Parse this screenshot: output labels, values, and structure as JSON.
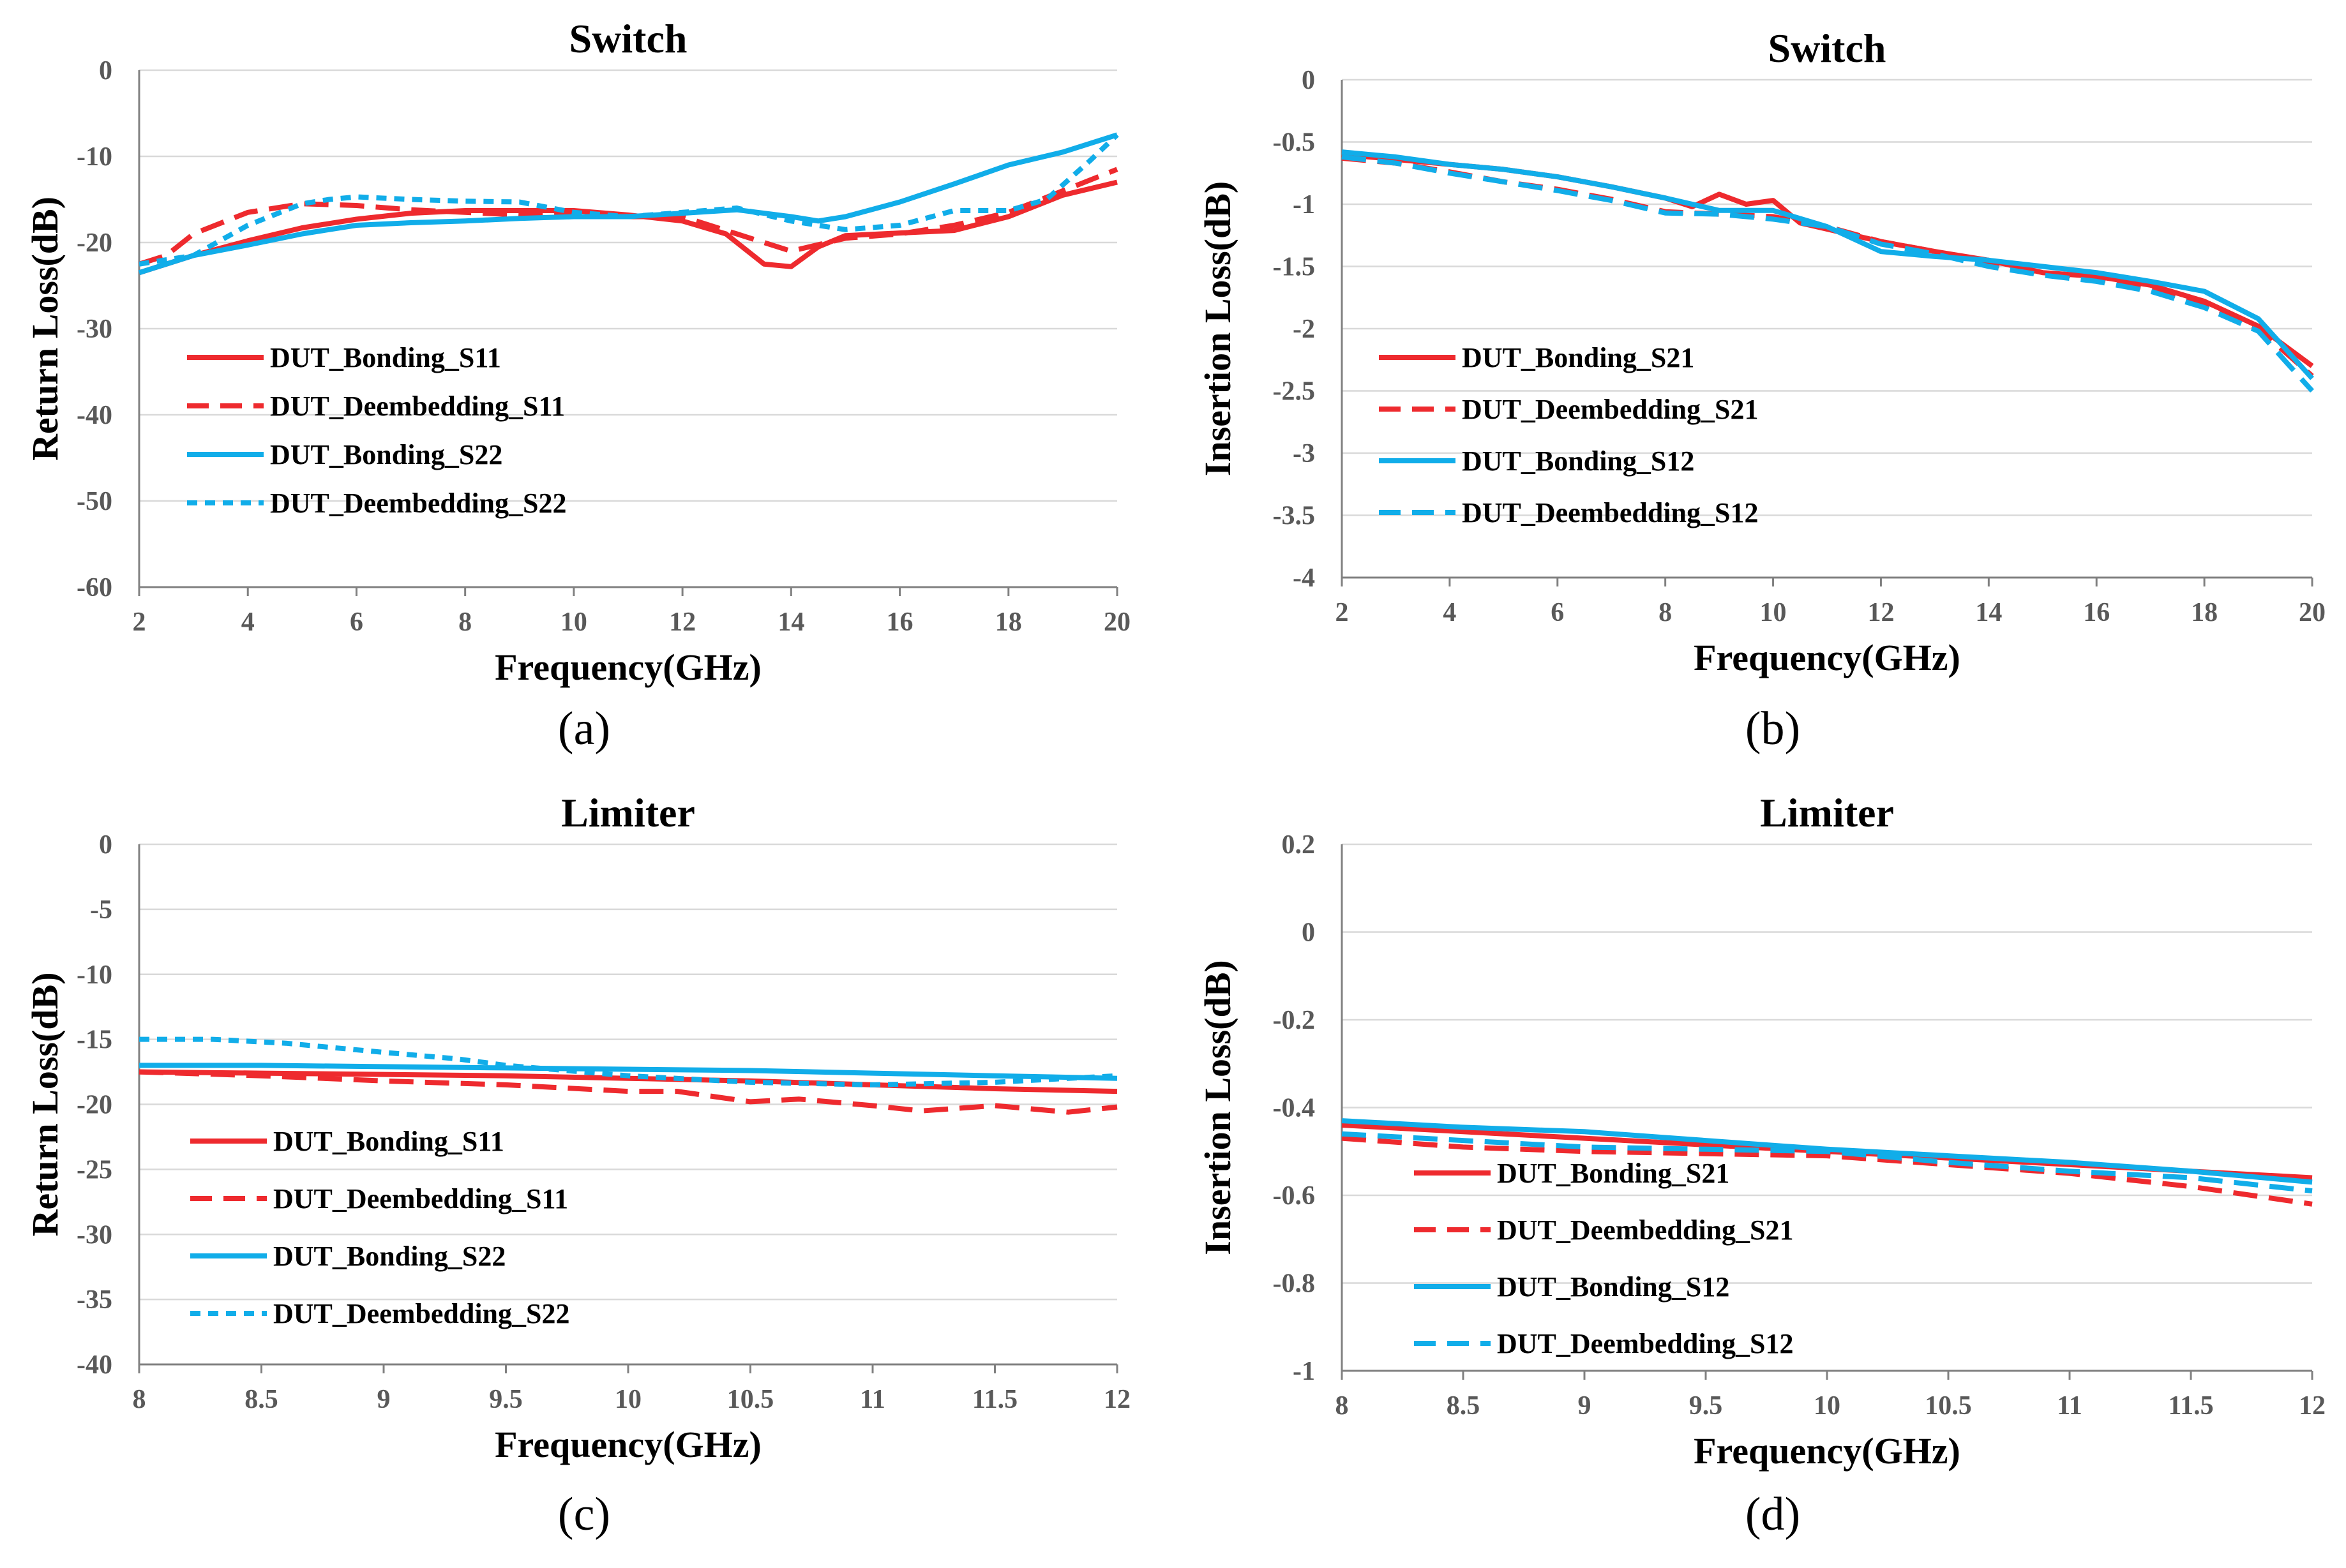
{
  "colors": {
    "red": "#EE2A2E",
    "blue": "#11ADE9",
    "grid": "#D9D9D9",
    "axis": "#808080"
  },
  "panels": [
    {
      "id": "a",
      "caption": "(a)",
      "chart_data": {
        "type": "line",
        "title": "Switch",
        "xlabel": "Frequency(GHz)",
        "ylabel": "Return Loss(dB)",
        "xlim": [
          2,
          20
        ],
        "ylim": [
          -60,
          0
        ],
        "xticks": [
          2,
          4,
          6,
          8,
          10,
          12,
          14,
          16,
          18,
          20
        ],
        "yticks": [
          0,
          -10,
          -20,
          -30,
          -40,
          -50,
          -60
        ],
        "legend_position": "lower-left",
        "series": [
          {
            "name": "DUT_Bonding_S11",
            "color": "red",
            "style": "solid",
            "x": [
              2,
              3,
              4,
              5,
              6,
              7,
              8,
              9,
              10,
              11,
              12,
              12.8,
              13.5,
              14,
              14.5,
              15,
              16,
              17,
              18,
              19,
              20
            ],
            "y": [
              -23.5,
              -21.5,
              -19.8,
              -18.3,
              -17.3,
              -16.6,
              -16.3,
              -16.3,
              -16.3,
              -16.8,
              -17.5,
              -19,
              -22.5,
              -22.8,
              -20.5,
              -19.2,
              -18.9,
              -18.6,
              -17,
              -14.5,
              -13
            ]
          },
          {
            "name": "DUT_Deembedding_S11",
            "color": "red",
            "style": "dash",
            "x": [
              2,
              2.5,
              3,
              4,
              5,
              6,
              7,
              8,
              9,
              10,
              11,
              12,
              13,
              14,
              15,
              16,
              17,
              18,
              19,
              20
            ],
            "y": [
              -22.5,
              -21.5,
              -19,
              -16.5,
              -15.5,
              -15.7,
              -16.2,
              -16.5,
              -16.8,
              -16.8,
              -17,
              -17,
              -19,
              -21,
              -19.5,
              -19,
              -18,
              -16.5,
              -14,
              -11.5
            ]
          },
          {
            "name": "DUT_Bonding_S22",
            "color": "blue",
            "style": "solid",
            "x": [
              2,
              3,
              4,
              5,
              6,
              7,
              8,
              9,
              10,
              11,
              12,
              13,
              14,
              14.5,
              15,
              16,
              17,
              18,
              19,
              20
            ],
            "y": [
              -23.5,
              -21.5,
              -20.3,
              -19,
              -18,
              -17.7,
              -17.5,
              -17.2,
              -17,
              -17,
              -16.6,
              -16.2,
              -17,
              -17.5,
              -17,
              -15.3,
              -13.2,
              -11,
              -9.5,
              -7.5
            ]
          },
          {
            "name": "DUT_Deembedding_S22",
            "color": "blue",
            "style": "dot",
            "x": [
              2,
              3,
              4,
              5,
              5.5,
              6,
              7,
              8,
              9,
              10,
              11,
              12,
              13,
              14,
              15,
              16,
              17,
              18,
              18.7,
              19.5,
              20
            ],
            "y": [
              -22.5,
              -21.5,
              -18,
              -15.5,
              -15,
              -14.7,
              -15,
              -15.2,
              -15.3,
              -16.5,
              -17,
              -16.5,
              -16,
              -17.5,
              -18.5,
              -18,
              -16.3,
              -16.3,
              -15,
              -10.5,
              -7.5
            ]
          }
        ],
        "legend": [
          "DUT_Bonding_S11",
          "DUT_Deembedding_S11",
          "DUT_Bonding_S22",
          "DUT_Deembedding_S22"
        ]
      }
    },
    {
      "id": "b",
      "caption": "(b)",
      "chart_data": {
        "type": "line",
        "title": "Switch",
        "xlabel": "Frequency(GHz)",
        "ylabel": "Insertion Loss(dB)",
        "xlim": [
          2,
          20
        ],
        "ylim": [
          -4,
          0
        ],
        "xticks": [
          2,
          4,
          6,
          8,
          10,
          12,
          14,
          16,
          18,
          20
        ],
        "yticks": [
          0,
          -0.5,
          -1,
          -1.5,
          -2,
          -2.5,
          -3,
          -3.5,
          -4
        ],
        "ytick_labels": [
          "0",
          "-0.5",
          "-1",
          "-1.5",
          "-2",
          "-2.5",
          "-3",
          "-3.5",
          "-4"
        ],
        "legend_position": "lower-left",
        "series": [
          {
            "name": "DUT_Bonding_S21",
            "color": "red",
            "style": "solid",
            "x": [
              2,
              3,
              4,
              5,
              6,
              7,
              8,
              8.5,
              9,
              9.5,
              10,
              10.5,
              11,
              12,
              13,
              14,
              15,
              16,
              17,
              18,
              19,
              20
            ],
            "y": [
              -0.6,
              -0.64,
              -0.68,
              -0.72,
              -0.78,
              -0.86,
              -0.95,
              -1.02,
              -0.92,
              -1.0,
              -0.97,
              -1.15,
              -1.2,
              -1.3,
              -1.38,
              -1.45,
              -1.55,
              -1.58,
              -1.65,
              -1.78,
              -1.98,
              -2.3
            ]
          },
          {
            "name": "DUT_Deembedding_S21",
            "color": "red",
            "style": "dash",
            "x": [
              2,
              3,
              4,
              5,
              6,
              7,
              8,
              9,
              10,
              11,
              12,
              13,
              14,
              15,
              16,
              17,
              18,
              19,
              20
            ],
            "y": [
              -0.63,
              -0.67,
              -0.74,
              -0.82,
              -0.88,
              -0.96,
              -1.06,
              -1.08,
              -1.1,
              -1.18,
              -1.3,
              -1.38,
              -1.48,
              -1.55,
              -1.6,
              -1.68,
              -1.8,
              -2.0,
              -2.38
            ]
          },
          {
            "name": "DUT_Bonding_S12",
            "color": "blue",
            "style": "solid",
            "x": [
              2,
              3,
              4,
              5,
              6,
              7,
              8,
              9,
              10,
              11,
              12,
              13,
              14,
              15,
              16,
              17,
              18,
              19,
              20
            ],
            "y": [
              -0.58,
              -0.62,
              -0.68,
              -0.72,
              -0.78,
              -0.86,
              -0.95,
              -1.05,
              -1.05,
              -1.18,
              -1.38,
              -1.42,
              -1.45,
              -1.5,
              -1.55,
              -1.62,
              -1.7,
              -1.92,
              -2.4
            ]
          },
          {
            "name": "DUT_Deembedding_S12",
            "color": "blue",
            "style": "dash",
            "x": [
              2,
              3,
              4,
              5,
              6,
              7,
              8,
              9,
              10,
              11,
              12,
              13,
              14,
              15,
              16,
              17,
              18,
              19,
              20
            ],
            "y": [
              -0.62,
              -0.67,
              -0.75,
              -0.82,
              -0.89,
              -0.97,
              -1.07,
              -1.08,
              -1.12,
              -1.18,
              -1.32,
              -1.4,
              -1.5,
              -1.57,
              -1.62,
              -1.7,
              -1.83,
              -2.02,
              -2.5
            ]
          }
        ],
        "legend": [
          "DUT_Bonding_S21",
          "DUT_Deembedding_S21",
          "DUT_Bonding_S12",
          "DUT_Deembedding_S12"
        ]
      }
    },
    {
      "id": "c",
      "caption": "(c)",
      "chart_data": {
        "type": "line",
        "title": "Limiter",
        "xlabel": "Frequency(GHz)",
        "ylabel": "Return Loss(dB)",
        "xlim": [
          8,
          12
        ],
        "ylim": [
          -40,
          0
        ],
        "xticks": [
          8,
          8.5,
          9,
          9.5,
          10,
          10.5,
          11,
          11.5,
          12
        ],
        "yticks": [
          0,
          -5,
          -10,
          -15,
          -20,
          -25,
          -30,
          -35,
          -40
        ],
        "legend_position": "lower-left",
        "series": [
          {
            "name": "DUT_Bonding_S11",
            "color": "red",
            "style": "solid",
            "x": [
              8,
              8.5,
              9,
              9.5,
              10,
              10.5,
              11,
              11.5,
              12
            ],
            "y": [
              -17.5,
              -17.6,
              -17.7,
              -17.8,
              -18,
              -18.2,
              -18.5,
              -18.8,
              -19
            ]
          },
          {
            "name": "DUT_Deembedding_S11",
            "color": "red",
            "style": "dash",
            "x": [
              8,
              8.5,
              9,
              9.5,
              10,
              10.2,
              10.5,
              10.7,
              11,
              11.2,
              11.5,
              11.8,
              12
            ],
            "y": [
              -17.5,
              -17.8,
              -18.2,
              -18.5,
              -19,
              -19,
              -19.8,
              -19.6,
              -20.1,
              -20.5,
              -20.1,
              -20.6,
              -20.2
            ]
          },
          {
            "name": "DUT_Bonding_S22",
            "color": "blue",
            "style": "solid",
            "x": [
              8,
              8.5,
              9,
              9.5,
              10,
              10.5,
              11,
              11.5,
              12
            ],
            "y": [
              -17,
              -17,
              -17.1,
              -17.2,
              -17.3,
              -17.4,
              -17.6,
              -17.8,
              -18
            ]
          },
          {
            "name": "DUT_Deembedding_S22",
            "color": "blue",
            "style": "dot",
            "x": [
              8,
              8.3,
              8.6,
              9,
              9.3,
              9.5,
              10,
              10.5,
              11,
              11.5,
              12
            ],
            "y": [
              -15,
              -15,
              -15.3,
              -16,
              -16.5,
              -17,
              -17.8,
              -18.3,
              -18.5,
              -18.3,
              -17.8
            ]
          }
        ],
        "legend": [
          "DUT_Bonding_S11",
          "DUT_Deembedding_S11",
          "DUT_Bonding_S22",
          "DUT_Deembedding_S22"
        ]
      }
    },
    {
      "id": "d",
      "caption": "(d)",
      "chart_data": {
        "type": "line",
        "title": "Limiter",
        "xlabel": "Frequency(GHz)",
        "ylabel": "Insertion Loss(dB)",
        "xlim": [
          8,
          12
        ],
        "ylim": [
          -1,
          0.2
        ],
        "xticks": [
          8,
          8.5,
          9,
          9.5,
          10,
          10.5,
          11,
          11.5,
          12
        ],
        "yticks": [
          0.2,
          0,
          -0.2,
          -0.4,
          -0.6,
          -0.8,
          -1
        ],
        "ytick_labels": [
          "0.2",
          "0",
          "-0.2",
          "-0.4",
          "-0.6",
          "-0.8",
          "-1"
        ],
        "legend_position": "lower-left",
        "series": [
          {
            "name": "DUT_Bonding_S21",
            "color": "red",
            "style": "solid",
            "x": [
              8,
              8.5,
              9,
              9.5,
              10,
              10.5,
              11,
              11.5,
              12
            ],
            "y": [
              -0.44,
              -0.455,
              -0.47,
              -0.485,
              -0.5,
              -0.515,
              -0.53,
              -0.545,
              -0.56
            ]
          },
          {
            "name": "DUT_Deembedding_S21",
            "color": "red",
            "style": "dash",
            "x": [
              8,
              8.5,
              9,
              9.5,
              10,
              10.5,
              11,
              11.5,
              12
            ],
            "y": [
              -0.47,
              -0.49,
              -0.5,
              -0.505,
              -0.51,
              -0.53,
              -0.55,
              -0.58,
              -0.62
            ]
          },
          {
            "name": "DUT_Bonding_S12",
            "color": "blue",
            "style": "solid",
            "x": [
              8,
              8.5,
              9,
              9.5,
              10,
              10.5,
              11,
              11.5,
              12
            ],
            "y": [
              -0.43,
              -0.445,
              -0.455,
              -0.475,
              -0.495,
              -0.51,
              -0.525,
              -0.545,
              -0.57
            ]
          },
          {
            "name": "DUT_Deembedding_S12",
            "color": "blue",
            "style": "dash",
            "x": [
              8,
              8.5,
              9,
              9.5,
              10,
              10.5,
              11,
              11.5,
              12
            ],
            "y": [
              -0.46,
              -0.475,
              -0.49,
              -0.495,
              -0.5,
              -0.525,
              -0.545,
              -0.56,
              -0.59
            ]
          }
        ],
        "legend": [
          "DUT_Bonding_S21",
          "DUT_Deembedding_S21",
          "DUT_Bonding_S12",
          "DUT_Deembedding_S12"
        ]
      }
    }
  ]
}
